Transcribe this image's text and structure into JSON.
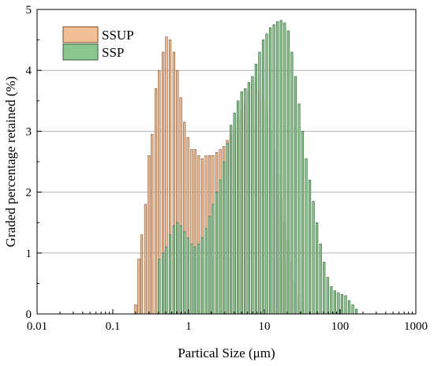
{
  "chart_data": {
    "type": "bar",
    "xscale": "log",
    "xlabel": "Partical Size (μm)",
    "ylabel": "Graded percentage retained (%)",
    "xlim": [
      0.01,
      1000
    ],
    "ylim": [
      0,
      5
    ],
    "xticks": [
      0.01,
      0.1,
      1,
      10,
      100,
      1000
    ],
    "xtick_labels": [
      "0.01",
      "0.1",
      "1",
      "10",
      "100",
      "1000"
    ],
    "yticks": [
      0,
      1,
      2,
      3,
      4,
      5
    ],
    "ytick_labels": [
      "0",
      "1",
      "2",
      "3",
      "4",
      "5"
    ],
    "grid": "horizontal",
    "legend": "top-left",
    "series": [
      {
        "name": "SSUP",
        "color": "#f5bf95",
        "x": [
          0.2,
          0.22,
          0.24,
          0.27,
          0.3,
          0.33,
          0.37,
          0.41,
          0.46,
          0.51,
          0.57,
          0.64,
          0.71,
          0.79,
          0.88,
          0.98,
          1.1,
          1.22,
          1.36,
          1.52,
          1.7,
          1.89,
          2.1,
          2.35,
          2.62,
          2.92,
          3.25,
          3.62,
          4.04,
          4.5,
          5.02,
          5.6,
          6.24,
          6.96,
          7.76,
          8.65,
          9.65,
          10.76,
          12.0,
          13.38,
          14.92,
          16.64,
          18.55,
          20.69,
          23.07,
          25.73,
          28.69,
          32.0
        ],
        "values": [
          0.15,
          0.9,
          1.3,
          1.8,
          2.6,
          2.95,
          3.7,
          4.0,
          4.3,
          4.55,
          4.5,
          4.3,
          4.0,
          3.55,
          3.15,
          2.9,
          2.7,
          2.7,
          2.6,
          2.55,
          2.6,
          2.6,
          2.6,
          2.65,
          2.7,
          2.75,
          2.85,
          2.95,
          3.05,
          3.2,
          3.35,
          3.45,
          3.65,
          3.75,
          3.8,
          3.65,
          3.5,
          3.3,
          3.0,
          2.7,
          2.3,
          1.9,
          1.5,
          1.2,
          0.85,
          0.55,
          0.3,
          0.15
        ]
      },
      {
        "name": "SSP",
        "color": "#8cc68f",
        "x": [
          0.41,
          0.46,
          0.51,
          0.57,
          0.64,
          0.71,
          0.79,
          0.88,
          0.98,
          1.1,
          1.22,
          1.36,
          1.52,
          1.7,
          1.89,
          2.1,
          2.35,
          2.62,
          2.92,
          3.25,
          3.62,
          4.04,
          4.5,
          5.02,
          5.6,
          6.24,
          6.96,
          7.76,
          8.65,
          9.65,
          10.76,
          12.0,
          13.38,
          14.92,
          16.64,
          18.55,
          20.69,
          23.07,
          25.73,
          28.69,
          32.0,
          35.68,
          39.79,
          44.37,
          49.47,
          55.16,
          61.51,
          68.59,
          76.48,
          85.28,
          95.09,
          106.03,
          118.23,
          131.83,
          147.0,
          163.9
        ],
        "values": [
          0.9,
          1.0,
          1.1,
          1.3,
          1.45,
          1.5,
          1.45,
          1.35,
          1.25,
          1.15,
          1.1,
          1.15,
          1.25,
          1.4,
          1.6,
          1.8,
          2.0,
          2.2,
          2.5,
          2.8,
          3.1,
          3.3,
          3.5,
          3.65,
          3.7,
          3.8,
          3.9,
          4.1,
          4.3,
          4.5,
          4.6,
          4.7,
          4.75,
          4.8,
          4.82,
          4.78,
          4.65,
          4.3,
          3.9,
          3.45,
          3.0,
          2.55,
          2.2,
          1.85,
          1.5,
          1.15,
          0.85,
          0.6,
          0.45,
          0.38,
          0.35,
          0.32,
          0.3,
          0.22,
          0.15,
          0.08
        ]
      }
    ]
  }
}
